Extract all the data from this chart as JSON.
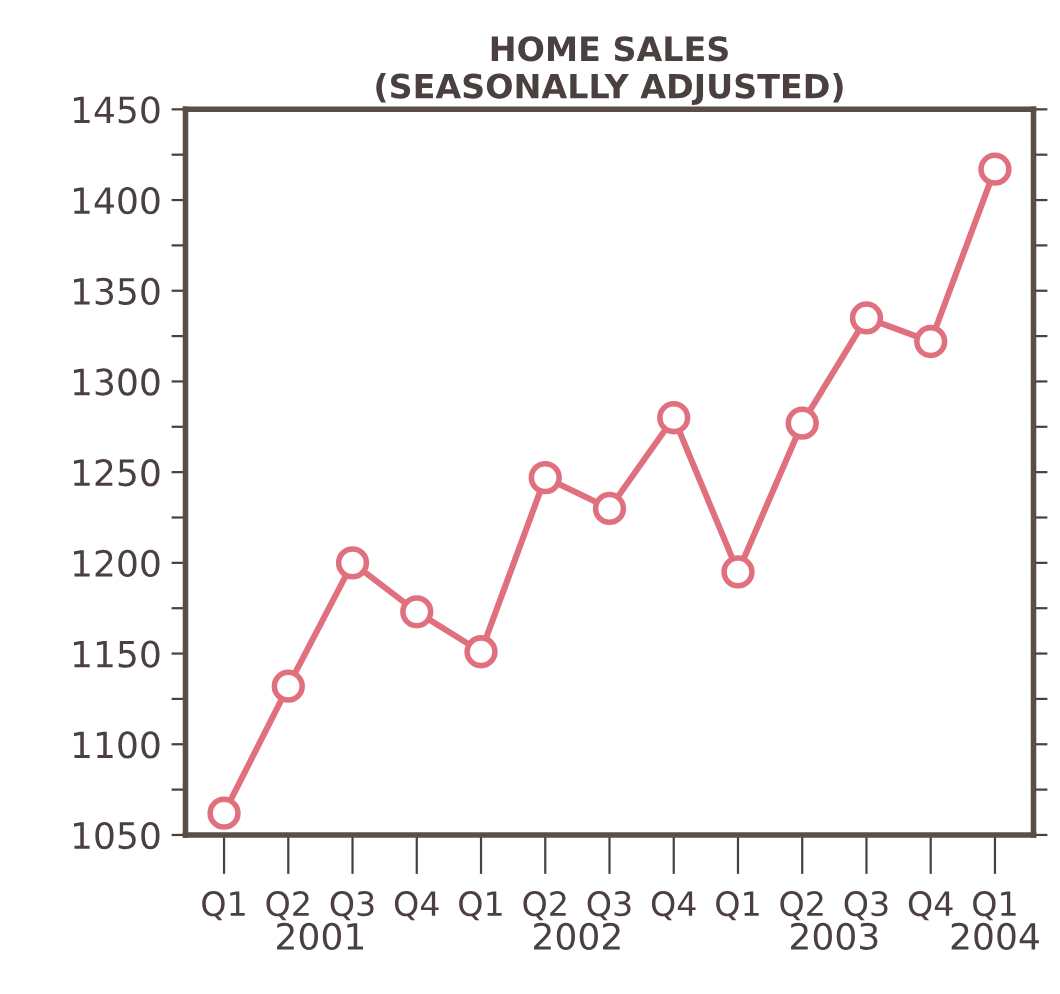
{
  "chart_data": {
    "type": "line",
    "title": "HOME SALES\n(SEASONALLY ADJUSTED)",
    "categories": [
      "Q1",
      "Q2",
      "Q3",
      "Q4",
      "Q1",
      "Q2",
      "Q3",
      "Q4",
      "Q1",
      "Q2",
      "Q3",
      "Q4",
      "Q1"
    ],
    "series": [
      {
        "color": "#e0707e",
        "values": [
          1062,
          1132,
          1200,
          1173,
          1151,
          1247,
          1230,
          1280,
          1195,
          1277,
          1335,
          1322,
          1417
        ]
      }
    ],
    "annotations": [
      "2001",
      "2002",
      "2003",
      "2004"
    ],
    "ylim": [
      1050,
      1450
    ],
    "yticks": [
      1050,
      {
        "value": 1075,
        "label": null
      },
      1100,
      {
        "value": 1125,
        "label": null
      },
      1150,
      {
        "value": 1175,
        "label": null
      },
      1200,
      {
        "value": 1225,
        "label": null
      },
      1250,
      {
        "value": 1275,
        "label": null
      },
      1300,
      {
        "value": 1325,
        "label": null
      },
      1350,
      {
        "value": 1375,
        "label": null
      },
      1400,
      {
        "value": 1425,
        "label": null
      },
      1450
    ],
    "marker": "circle",
    "line_style": "solid",
    "grid": false,
    "legend": false
  }
}
